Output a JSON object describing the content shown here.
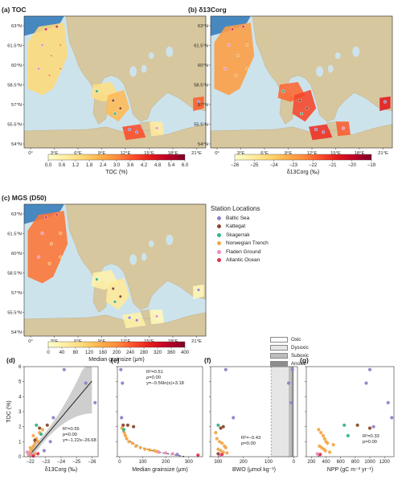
{
  "colors": {
    "land": "#d7c79e",
    "sea": "#cde3ec",
    "deep": "#2f78b9",
    "fit_line": "#222222",
    "ci_band": "#b9b9b9",
    "stations": {
      "baltic": "#8e83c9",
      "kattegat": "#8b4a2b",
      "skagerrak": "#37b486",
      "norwegian": "#f4a64a",
      "fladen": "#e98ec0",
      "atlantic": "#e0344e"
    }
  },
  "maps": [
    {
      "id": "a",
      "title": "(a) TOC",
      "cbar_ticks": [
        "0.0",
        "0.6",
        "1.2",
        "1.8",
        "2.4",
        "3.0",
        "3.6",
        "4.2",
        "4.8",
        "5.4",
        "6.0"
      ],
      "cbar_label": "TOC (%)",
      "cmap": "ylorrd"
    },
    {
      "id": "b",
      "title": "(b) δ13Corg",
      "cbar_ticks": [
        "−26",
        "−25",
        "−24",
        "−23",
        "−22",
        "−21",
        "−20",
        "−19"
      ],
      "cbar_label": "δ13Corg (‰)",
      "cmap": "ylorrd"
    },
    {
      "id": "c",
      "title": "(c) MGS (D50)",
      "cbar_ticks": [
        "0",
        "40",
        "80",
        "120",
        "160",
        "200",
        "240",
        "280",
        "320",
        "360",
        "400"
      ],
      "cbar_label": "Median grainsize (μm)",
      "cmap": "ylorrd"
    }
  ],
  "map_axes": {
    "lat_labels": [
      "63°N",
      "61.5°N",
      "60°N",
      "58.5°N",
      "57°N",
      "55.5°N",
      "54°N"
    ],
    "lon_labels": [
      "0°",
      "3°E",
      "6°E",
      "9°E",
      "12°E",
      "15°E",
      "18°E",
      "21°E"
    ]
  },
  "legend": {
    "title": "Station Locations",
    "items": [
      {
        "label": "Baltic Sea",
        "key": "baltic"
      },
      {
        "label": "Kattegat",
        "key": "kattegat"
      },
      {
        "label": "Skagerrak",
        "key": "skagerrak"
      },
      {
        "label": "Norwegian Trench",
        "key": "norwegian"
      },
      {
        "label": "Fladen Ground",
        "key": "fladen"
      },
      {
        "label": "Atlantic Ocean",
        "key": "atlantic"
      }
    ]
  },
  "oxygen_legend": [
    {
      "label": "Oxic",
      "color": "#ffffff"
    },
    {
      "label": "Dysoxic",
      "color": "#e6e6e6"
    },
    {
      "label": "Suboxic",
      "color": "#bdbdbd"
    },
    {
      "label": "Anoxic",
      "color": "#8d8d8d"
    }
  ],
  "chart_data": [
    {
      "id": "d",
      "type": "scatter",
      "title": "(d)",
      "xlabel": "δ13Corg (‰)",
      "ylabel": "TOC (%)",
      "x_ticks": [
        "−22",
        "−23",
        "−24",
        "−25",
        "−26"
      ],
      "y_ticks": [
        "0",
        "1",
        "2",
        "3",
        "4",
        "5",
        "6"
      ],
      "xlim": [
        -21.6,
        -26.4
      ],
      "ylim": [
        0,
        6
      ],
      "annotation": [
        "R²=0.55",
        "p=0.00",
        "y=−1.22x−26.68"
      ],
      "points": [
        {
          "x": -21.9,
          "y": 0.1,
          "s": "norwegian"
        },
        {
          "x": -22.0,
          "y": 0.3,
          "s": "norwegian"
        },
        {
          "x": -22.1,
          "y": 0.5,
          "s": "norwegian"
        },
        {
          "x": -22.2,
          "y": 0.7,
          "s": "norwegian"
        },
        {
          "x": -22.3,
          "y": 0.9,
          "s": "norwegian"
        },
        {
          "x": -22.4,
          "y": 1.2,
          "s": "norwegian"
        },
        {
          "x": -22.2,
          "y": 1.4,
          "s": "norwegian"
        },
        {
          "x": -22.5,
          "y": 1.0,
          "s": "norwegian"
        },
        {
          "x": -22.6,
          "y": 1.6,
          "s": "norwegian"
        },
        {
          "x": -22.3,
          "y": 0.2,
          "s": "norwegian"
        },
        {
          "x": -22.8,
          "y": 1.8,
          "s": "norwegian"
        },
        {
          "x": -22.0,
          "y": 0.6,
          "s": "norwegian"
        },
        {
          "x": -21.8,
          "y": 0.3,
          "s": "fladen"
        },
        {
          "x": -21.9,
          "y": 0.2,
          "s": "fladen"
        },
        {
          "x": -22.1,
          "y": 0.1,
          "s": "fladen"
        },
        {
          "x": -22.4,
          "y": 2.1,
          "s": "skagerrak"
        },
        {
          "x": -22.7,
          "y": 1.5,
          "s": "skagerrak"
        },
        {
          "x": -22.5,
          "y": 0.2,
          "s": "atlantic"
        },
        {
          "x": -22.2,
          "y": 0.05,
          "s": "atlantic"
        },
        {
          "x": -22.3,
          "y": 1.1,
          "s": "kattegat"
        },
        {
          "x": -22.6,
          "y": 1.9,
          "s": "kattegat"
        },
        {
          "x": -23.1,
          "y": 2.1,
          "s": "kattegat"
        },
        {
          "x": -23.5,
          "y": 2.6,
          "s": "baltic"
        },
        {
          "x": -24.2,
          "y": 5.8,
          "s": "baltic"
        },
        {
          "x": -25.6,
          "y": 4.9,
          "s": "baltic"
        },
        {
          "x": -26.2,
          "y": 3.6,
          "s": "baltic"
        },
        {
          "x": -22.9,
          "y": 0.4,
          "s": "baltic"
        },
        {
          "x": -23.3,
          "y": 1.0,
          "s": "baltic"
        }
      ],
      "fit": {
        "type": "linear",
        "x": [
          -21.9,
          -26.0
        ]
      }
    },
    {
      "id": "e",
      "type": "scatter",
      "title": "(e)",
      "xlabel": "Median grainsize (μm)",
      "x_ticks": [
        "0",
        "100",
        "200",
        "300"
      ],
      "y_ticks": [
        "0",
        "1",
        "2",
        "3",
        "4",
        "5",
        "6"
      ],
      "xlim": [
        -10,
        360
      ],
      "ylim": [
        0,
        6
      ],
      "annotation": [
        "R²=0.51",
        "ρ=0.00",
        "y=−0.56ln(x)+3.18"
      ],
      "points": [
        {
          "x": 5,
          "y": 5.8,
          "s": "baltic"
        },
        {
          "x": 12,
          "y": 4.9,
          "s": "baltic"
        },
        {
          "x": 8,
          "y": 2.6,
          "s": "baltic"
        },
        {
          "x": 15,
          "y": 2.1,
          "s": "kattegat"
        },
        {
          "x": 10,
          "y": 1.9,
          "s": "norwegian"
        },
        {
          "x": 20,
          "y": 1.6,
          "s": "norwegian"
        },
        {
          "x": 25,
          "y": 1.4,
          "s": "norwegian"
        },
        {
          "x": 30,
          "y": 1.2,
          "s": "norwegian"
        },
        {
          "x": 18,
          "y": 1.8,
          "s": "skagerrak"
        },
        {
          "x": 40,
          "y": 1.0,
          "s": "norwegian"
        },
        {
          "x": 55,
          "y": 0.9,
          "s": "norwegian"
        },
        {
          "x": 70,
          "y": 0.7,
          "s": "norwegian"
        },
        {
          "x": 90,
          "y": 0.6,
          "s": "norwegian"
        },
        {
          "x": 110,
          "y": 0.5,
          "s": "norwegian"
        },
        {
          "x": 130,
          "y": 0.45,
          "s": "norwegian"
        },
        {
          "x": 150,
          "y": 0.4,
          "s": "norwegian"
        },
        {
          "x": 160,
          "y": 0.35,
          "s": "norwegian"
        },
        {
          "x": 170,
          "y": 0.3,
          "s": "fladen"
        },
        {
          "x": 200,
          "y": 0.25,
          "s": "fladen"
        },
        {
          "x": 230,
          "y": 0.2,
          "s": "fladen"
        },
        {
          "x": 250,
          "y": 0.15,
          "s": "baltic"
        },
        {
          "x": 340,
          "y": 0.1,
          "s": "atlantic"
        },
        {
          "x": 60,
          "y": 2.0,
          "s": "kattegat"
        },
        {
          "x": 35,
          "y": 2.1,
          "s": "kattegat"
        }
      ],
      "fit": {
        "type": "log",
        "x": [
          8,
          280
        ]
      }
    },
    {
      "id": "f",
      "type": "scatter",
      "title": "(f)",
      "xlabel": "BWO (μmol kg⁻¹)",
      "x_ticks": [
        "300",
        "200",
        "100",
        "0"
      ],
      "y_ticks": [
        "0",
        "1",
        "2",
        "3",
        "4",
        "5",
        "6"
      ],
      "xlim": [
        330,
        -15
      ],
      "ylim": [
        0,
        6
      ],
      "annotation": [
        "R²=−0.43",
        "p=0.00"
      ],
      "oxygen_bands": [
        {
          "label": "Dysoxic",
          "from": 90,
          "to": 20
        },
        {
          "label": "Suboxic",
          "from": 20,
          "to": 8
        },
        {
          "label": "Anoxic",
          "from": 8,
          "to": 0
        }
      ],
      "points": [
        {
          "x": 20,
          "y": 4.9,
          "s": "baltic"
        },
        {
          "x": 10,
          "y": 3.6,
          "s": "baltic"
        },
        {
          "x": 5,
          "y": 5.8,
          "s": "baltic"
        },
        {
          "x": 270,
          "y": 5.8,
          "s": "baltic"
        },
        {
          "x": 240,
          "y": 2.6,
          "s": "baltic"
        },
        {
          "x": 300,
          "y": 2.1,
          "s": "skagerrak"
        },
        {
          "x": 290,
          "y": 1.9,
          "s": "kattegat"
        },
        {
          "x": 280,
          "y": 2.0,
          "s": "kattegat"
        },
        {
          "x": 305,
          "y": 1.2,
          "s": "norwegian"
        },
        {
          "x": 295,
          "y": 1.0,
          "s": "norwegian"
        },
        {
          "x": 285,
          "y": 0.9,
          "s": "norwegian"
        },
        {
          "x": 275,
          "y": 0.7,
          "s": "norwegian"
        },
        {
          "x": 270,
          "y": 0.6,
          "s": "norwegian"
        },
        {
          "x": 300,
          "y": 0.5,
          "s": "norwegian"
        },
        {
          "x": 290,
          "y": 0.4,
          "s": "norwegian"
        },
        {
          "x": 280,
          "y": 0.3,
          "s": "norwegian"
        },
        {
          "x": 265,
          "y": 0.25,
          "s": "norwegian"
        },
        {
          "x": 310,
          "y": 1.6,
          "s": "norwegian"
        },
        {
          "x": 295,
          "y": 0.1,
          "s": "fladen"
        },
        {
          "x": 285,
          "y": 0.15,
          "s": "atlantic"
        },
        {
          "x": 300,
          "y": 0.2,
          "s": "kattegat"
        }
      ]
    },
    {
      "id": "g",
      "type": "scatter",
      "title": "(g)",
      "xlabel": "NPP (gC m⁻² yr⁻¹)",
      "x_ticks": [
        "200",
        "400",
        "600",
        "800",
        "1000",
        "1200"
      ],
      "y_ticks": [
        "0",
        "1",
        "2",
        "3",
        "4",
        "5",
        "6"
      ],
      "xlim": [
        130,
        1330
      ],
      "ylim": [
        0,
        6
      ],
      "annotation": [
        "R²=0.33",
        "p=0.00"
      ],
      "points": [
        {
          "x": 1000,
          "y": 5.8,
          "s": "baltic"
        },
        {
          "x": 950,
          "y": 4.9,
          "s": "baltic"
        },
        {
          "x": 1250,
          "y": 3.6,
          "s": "baltic"
        },
        {
          "x": 1300,
          "y": 2.6,
          "s": "baltic"
        },
        {
          "x": 1050,
          "y": 2.0,
          "s": "baltic"
        },
        {
          "x": 830,
          "y": 2.1,
          "s": "kattegat"
        },
        {
          "x": 1000,
          "y": 1.9,
          "s": "kattegat"
        },
        {
          "x": 650,
          "y": 2.1,
          "s": "skagerrak"
        },
        {
          "x": 700,
          "y": 1.4,
          "s": "skagerrak"
        },
        {
          "x": 300,
          "y": 1.8,
          "s": "norwegian"
        },
        {
          "x": 330,
          "y": 1.6,
          "s": "norwegian"
        },
        {
          "x": 360,
          "y": 1.4,
          "s": "norwegian"
        },
        {
          "x": 380,
          "y": 1.2,
          "s": "norwegian"
        },
        {
          "x": 400,
          "y": 1.0,
          "s": "norwegian"
        },
        {
          "x": 420,
          "y": 0.9,
          "s": "norwegian"
        },
        {
          "x": 310,
          "y": 0.7,
          "s": "norwegian"
        },
        {
          "x": 340,
          "y": 0.6,
          "s": "norwegian"
        },
        {
          "x": 370,
          "y": 0.5,
          "s": "norwegian"
        },
        {
          "x": 390,
          "y": 0.4,
          "s": "norwegian"
        },
        {
          "x": 450,
          "y": 0.3,
          "s": "norwegian"
        },
        {
          "x": 500,
          "y": 0.8,
          "s": "norwegian"
        },
        {
          "x": 280,
          "y": 0.2,
          "s": "fladen"
        },
        {
          "x": 300,
          "y": 0.1,
          "s": "fladen"
        },
        {
          "x": 320,
          "y": 0.15,
          "s": "atlantic"
        }
      ]
    }
  ]
}
